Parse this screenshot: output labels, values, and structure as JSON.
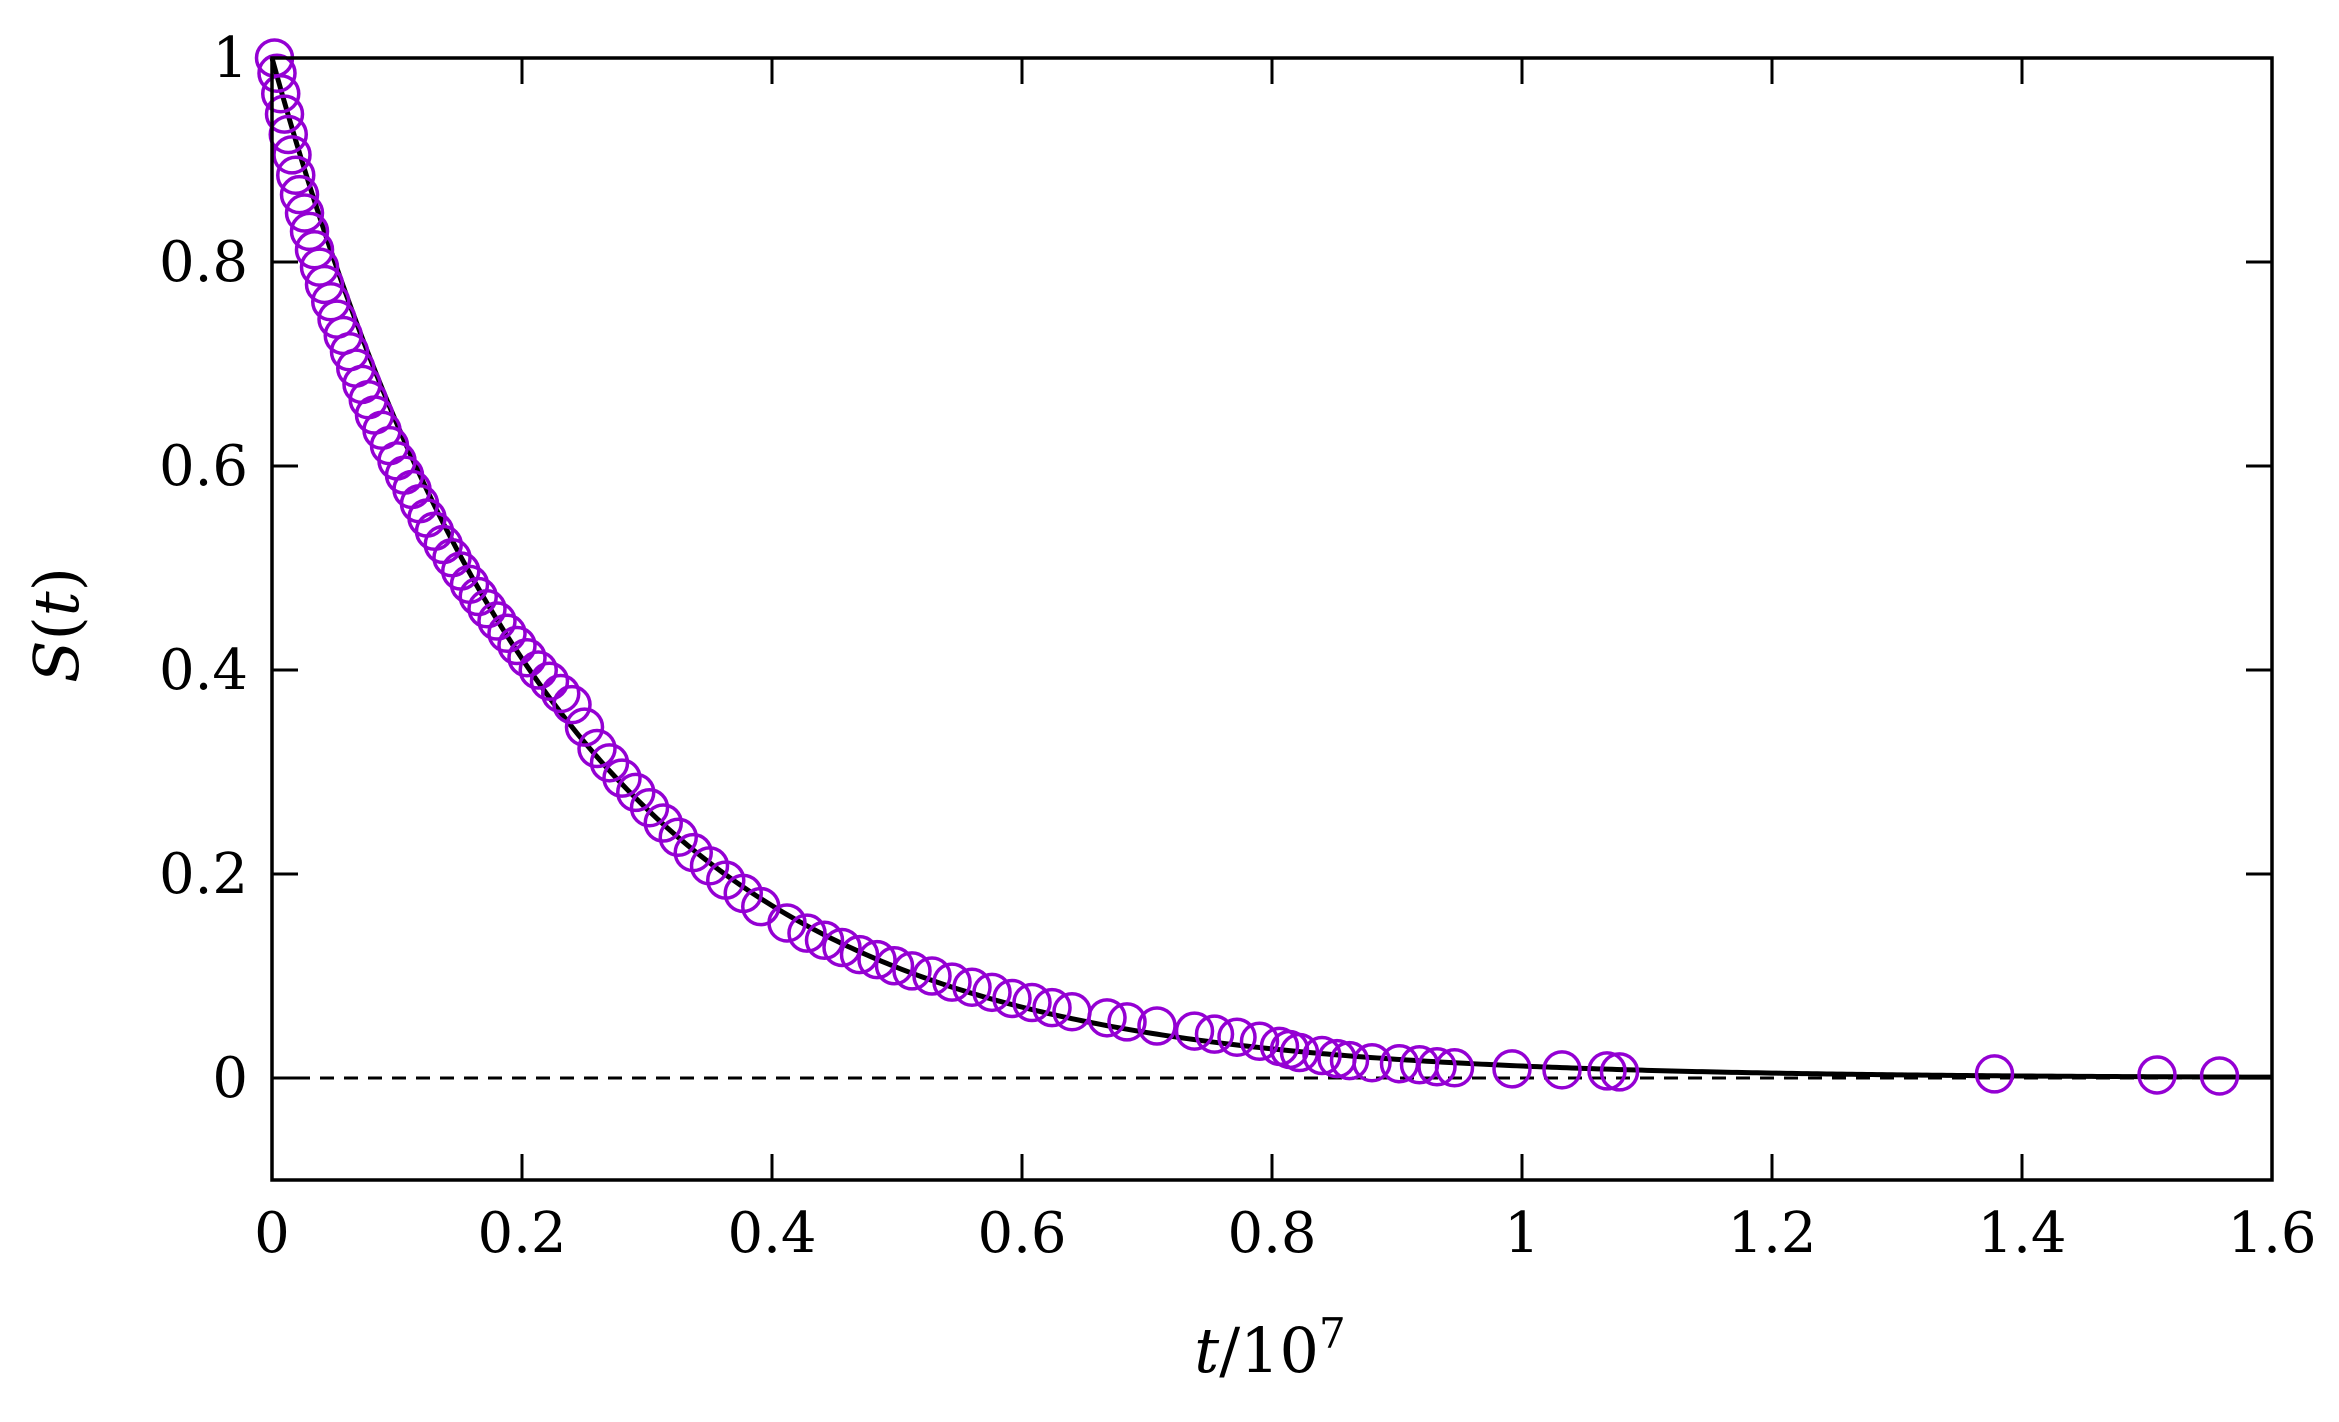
{
  "chart_data": {
    "type": "scatter",
    "title": "",
    "xlabel": {
      "var": "t",
      "rest": "/10",
      "exponent": "7"
    },
    "ylabel": {
      "var_s": "S",
      "open": "(",
      "var_t": "t",
      "close": ")"
    },
    "xlim": [
      0,
      1.6
    ],
    "ylim": [
      -0.1,
      1.0
    ],
    "x_ticks": [
      "0",
      "0.2",
      "0.4",
      "0.6",
      "0.8",
      "1",
      "1.2",
      "1.4",
      "1.6"
    ],
    "y_ticks": [
      "0",
      "0.2",
      "0.4",
      "0.6",
      "0.8",
      "1"
    ],
    "x_tick_values": [
      0,
      0.2,
      0.4,
      0.6,
      0.8,
      1.0,
      1.2,
      1.4,
      1.6
    ],
    "y_tick_values": [
      0,
      0.2,
      0.4,
      0.6,
      0.8,
      1.0
    ],
    "grid": false,
    "legend": "none",
    "colors": {
      "points": "#9400d3",
      "fit": "#000000",
      "zero_line": "#000000"
    },
    "series": [
      {
        "kind": "points",
        "marker": "open-circle",
        "x": [
          0.002,
          0.004,
          0.007,
          0.01,
          0.013,
          0.016,
          0.019,
          0.022,
          0.026,
          0.03,
          0.034,
          0.038,
          0.042,
          0.047,
          0.052,
          0.057,
          0.062,
          0.067,
          0.072,
          0.077,
          0.082,
          0.088,
          0.094,
          0.1,
          0.106,
          0.112,
          0.118,
          0.124,
          0.13,
          0.137,
          0.144,
          0.151,
          0.158,
          0.165,
          0.172,
          0.18,
          0.188,
          0.196,
          0.204,
          0.213,
          0.222,
          0.231,
          0.24,
          0.25,
          0.26,
          0.27,
          0.28,
          0.291,
          0.302,
          0.313,
          0.325,
          0.337,
          0.35,
          0.363,
          0.377,
          0.391,
          0.412,
          0.428,
          0.442,
          0.456,
          0.47,
          0.484,
          0.498,
          0.512,
          0.528,
          0.544,
          0.56,
          0.576,
          0.592,
          0.608,
          0.624,
          0.64,
          0.668,
          0.684,
          0.708,
          0.738,
          0.754,
          0.772,
          0.79,
          0.806,
          0.814,
          0.822,
          0.84,
          0.852,
          0.862,
          0.88,
          0.902,
          0.918,
          0.932,
          0.946,
          0.992,
          1.032,
          1.068,
          1.078,
          1.378,
          1.508,
          1.558
        ],
        "y": [
          1.0,
          0.985,
          0.965,
          0.945,
          0.925,
          0.905,
          0.885,
          0.866,
          0.848,
          0.83,
          0.812,
          0.795,
          0.778,
          0.761,
          0.744,
          0.728,
          0.712,
          0.696,
          0.68,
          0.665,
          0.65,
          0.635,
          0.62,
          0.605,
          0.591,
          0.577,
          0.563,
          0.549,
          0.536,
          0.523,
          0.51,
          0.497,
          0.484,
          0.472,
          0.46,
          0.448,
          0.436,
          0.424,
          0.412,
          0.4,
          0.389,
          0.377,
          0.366,
          0.344,
          0.323,
          0.309,
          0.294,
          0.28,
          0.265,
          0.25,
          0.236,
          0.221,
          0.208,
          0.194,
          0.181,
          0.168,
          0.152,
          0.142,
          0.135,
          0.128,
          0.121,
          0.116,
          0.11,
          0.105,
          0.1,
          0.094,
          0.089,
          0.084,
          0.078,
          0.074,
          0.069,
          0.065,
          0.059,
          0.055,
          0.051,
          0.046,
          0.043,
          0.04,
          0.036,
          0.031,
          0.028,
          0.025,
          0.022,
          0.019,
          0.017,
          0.015,
          0.014,
          0.013,
          0.011,
          0.01,
          0.009,
          0.008,
          0.007,
          0.006,
          0.004,
          0.003,
          0.002
        ]
      },
      {
        "kind": "fit-line",
        "style": "solid",
        "function": "exp(-t/tau)",
        "tau": 0.225,
        "x_range": [
          0.0,
          1.6
        ]
      },
      {
        "kind": "reference-line",
        "style": "dashed",
        "y": 0
      }
    ]
  }
}
